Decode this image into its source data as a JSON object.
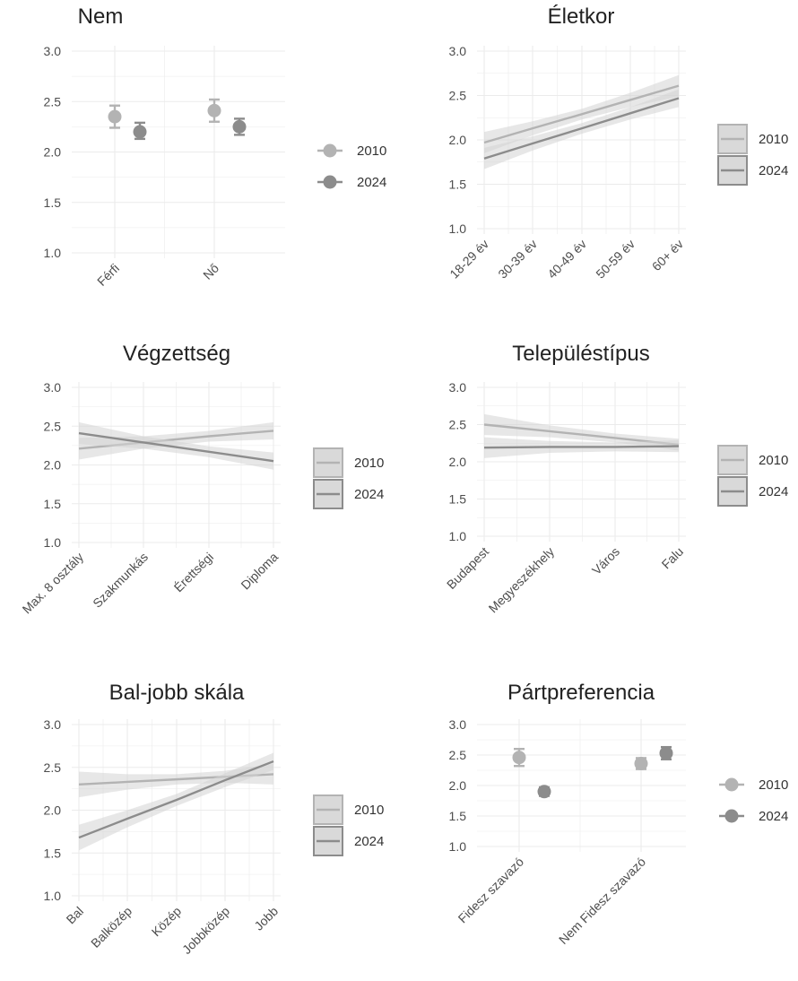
{
  "colors": {
    "series_2010": "#b3b3b3",
    "series_2024": "#8c8c8c",
    "ribbon": "#d3d3d3",
    "axis_text": "#4d4d4d",
    "grid": "#ebebeb"
  },
  "legend": [
    "2010",
    "2024"
  ],
  "chart_data": [
    {
      "title": "Nem",
      "type": "scatter",
      "categories": [
        "Férfi",
        "Nő"
      ],
      "ylim": [
        1.0,
        3.0
      ],
      "y_ticks": [
        "1.0",
        "1.5",
        "2.0",
        "2.5",
        "3.0"
      ],
      "series": [
        {
          "name": "2010",
          "values": [
            2.35,
            2.41
          ],
          "lower": [
            2.24,
            2.3
          ],
          "upper": [
            2.46,
            2.52
          ]
        },
        {
          "name": "2024",
          "values": [
            2.2,
            2.25
          ],
          "lower": [
            2.13,
            2.17
          ],
          "upper": [
            2.29,
            2.33
          ]
        }
      ],
      "legend_placement": "right",
      "grid": true
    },
    {
      "title": "Életkor",
      "type": "line",
      "categories": [
        "18-29 év",
        "30-39 év",
        "40-49 év",
        "50-59 év",
        "60+ év"
      ],
      "ylim": [
        1.0,
        3.0
      ],
      "y_ticks": [
        "1.0",
        "1.5",
        "2.0",
        "2.5",
        "3.0"
      ],
      "series": [
        {
          "name": "2010",
          "values": [
            1.97,
            2.13,
            2.29,
            2.45,
            2.61
          ],
          "lower": [
            1.85,
            2.05,
            2.23,
            2.37,
            2.49
          ],
          "upper": [
            2.09,
            2.21,
            2.35,
            2.53,
            2.73
          ]
        },
        {
          "name": "2024",
          "values": [
            1.79,
            1.96,
            2.13,
            2.3,
            2.47
          ],
          "lower": [
            1.67,
            1.88,
            2.07,
            2.23,
            2.37
          ],
          "upper": [
            1.91,
            2.04,
            2.19,
            2.37,
            2.57
          ]
        }
      ],
      "legend_placement": "right",
      "grid": true
    },
    {
      "title": "Végzettség",
      "type": "line",
      "categories": [
        "Max. 8 osztály",
        "Szakmunkás",
        "Érettségi",
        "Diploma"
      ],
      "ylim": [
        1.0,
        3.0
      ],
      "y_ticks": [
        "1.0",
        "1.5",
        "2.0",
        "2.5",
        "3.0"
      ],
      "series": [
        {
          "name": "2010",
          "values": [
            2.21,
            2.29,
            2.37,
            2.44
          ],
          "lower": [
            2.07,
            2.21,
            2.3,
            2.33
          ],
          "upper": [
            2.35,
            2.37,
            2.44,
            2.55
          ]
        },
        {
          "name": "2024",
          "values": [
            2.41,
            2.29,
            2.17,
            2.05
          ],
          "lower": [
            2.27,
            2.21,
            2.1,
            1.94
          ],
          "upper": [
            2.55,
            2.37,
            2.24,
            2.16
          ]
        }
      ],
      "legend_placement": "right",
      "grid": true
    },
    {
      "title": "Településtípus",
      "type": "line",
      "categories": [
        "Budapest",
        "Megyeszékhely",
        "Város",
        "Falu"
      ],
      "ylim": [
        1.0,
        3.0
      ],
      "y_ticks": [
        "1.0",
        "1.5",
        "2.0",
        "2.5",
        "3.0"
      ],
      "series": [
        {
          "name": "2010",
          "values": [
            2.5,
            2.41,
            2.32,
            2.23
          ],
          "lower": [
            2.36,
            2.33,
            2.26,
            2.15
          ],
          "upper": [
            2.64,
            2.49,
            2.38,
            2.31
          ]
        },
        {
          "name": "2024",
          "values": [
            2.19,
            2.2,
            2.2,
            2.21
          ],
          "lower": [
            2.05,
            2.12,
            2.14,
            2.13
          ],
          "upper": [
            2.33,
            2.28,
            2.26,
            2.29
          ]
        }
      ],
      "legend_placement": "right",
      "grid": true
    },
    {
      "title": "Bal-jobb skála",
      "type": "line",
      "categories": [
        "Bal",
        "Balközép",
        "Közép",
        "Jobbközép",
        "Jobb"
      ],
      "ylim": [
        1.0,
        3.0
      ],
      "y_ticks": [
        "1.0",
        "1.5",
        "2.0",
        "2.5",
        "3.0"
      ],
      "series": [
        {
          "name": "2010",
          "values": [
            2.3,
            2.33,
            2.36,
            2.39,
            2.42
          ],
          "lower": [
            2.15,
            2.24,
            2.3,
            2.32,
            2.3
          ],
          "upper": [
            2.45,
            2.42,
            2.42,
            2.46,
            2.54
          ]
        },
        {
          "name": "2024",
          "values": [
            1.68,
            1.9,
            2.12,
            2.35,
            2.57
          ],
          "lower": [
            1.53,
            1.8,
            2.05,
            2.27,
            2.47
          ],
          "upper": [
            1.83,
            2.0,
            2.19,
            2.43,
            2.67
          ]
        }
      ],
      "legend_placement": "right",
      "grid": true
    },
    {
      "title": "Pártpreferencia",
      "type": "scatter",
      "categories": [
        "Fidesz szavazó",
        "Nem Fidesz szavazó"
      ],
      "ylim": [
        1.0,
        3.0
      ],
      "y_ticks": [
        "1.0",
        "1.5",
        "2.0",
        "2.5",
        "3.0"
      ],
      "series": [
        {
          "name": "2010",
          "values": [
            2.46,
            2.36
          ],
          "lower": [
            2.32,
            2.27
          ],
          "upper": [
            2.6,
            2.45
          ]
        },
        {
          "name": "2024",
          "values": [
            1.9,
            2.53
          ],
          "lower": [
            1.83,
            2.43
          ],
          "upper": [
            1.97,
            2.63
          ]
        }
      ],
      "legend_placement": "right",
      "grid": true
    }
  ]
}
